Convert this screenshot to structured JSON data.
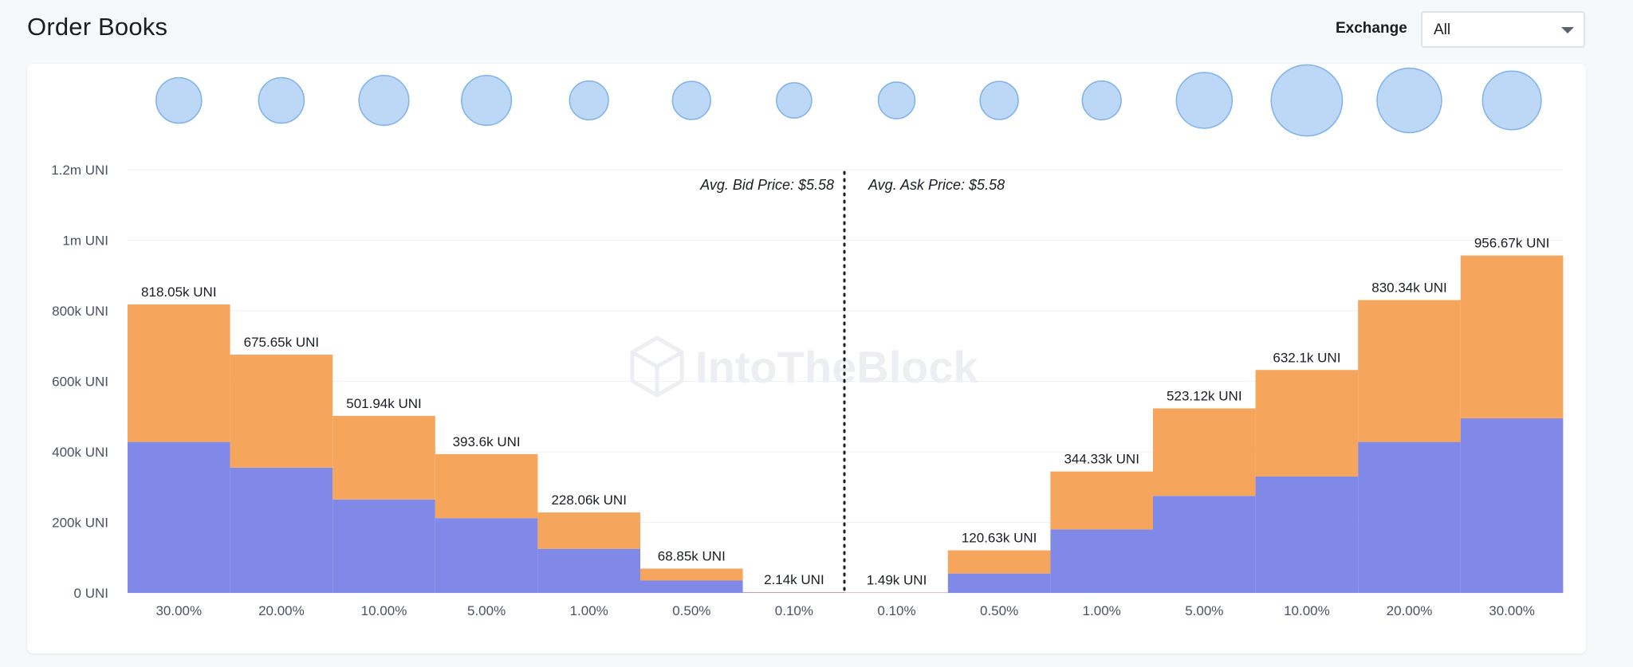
{
  "header": {
    "title": "Order Books",
    "exchange_label": "Exchange",
    "exchange_value": "All"
  },
  "watermark": "IntoTheBlock",
  "colors": {
    "upper": "#f5a55c",
    "lower": "#8088e8",
    "bubble_fill": "#bcd8f6",
    "bubble_stroke": "#7eb2ea"
  },
  "chart_data": {
    "type": "bar",
    "y_ticks": [
      "0 UNI",
      "200k UNI",
      "400k UNI",
      "600k UNI",
      "800k UNI",
      "1m UNI",
      "1.2m UNI"
    ],
    "ylim": [
      0,
      1200000
    ],
    "avg_bid_label": "Avg. Bid Price: $5.58",
    "avg_ask_label": "Avg. Ask Price: $5.58",
    "categories": [
      "30.00%",
      "20.00%",
      "10.00%",
      "5.00%",
      "1.00%",
      "0.50%",
      "0.10%",
      "0.10%",
      "0.50%",
      "1.00%",
      "5.00%",
      "10.00%",
      "20.00%",
      "30.00%"
    ],
    "sides": [
      "bid",
      "bid",
      "bid",
      "bid",
      "bid",
      "bid",
      "bid",
      "ask",
      "ask",
      "ask",
      "ask",
      "ask",
      "ask",
      "ask"
    ],
    "total_labels": [
      "818.05k UNI",
      "675.65k UNI",
      "501.94k UNI",
      "393.6k UNI",
      "228.06k UNI",
      "68.85k UNI",
      "2.14k UNI",
      "1.49k UNI",
      "120.63k UNI",
      "344.33k UNI",
      "523.12k UNI",
      "632.1k UNI",
      "830.34k UNI",
      "956.67k UNI"
    ],
    "series": [
      {
        "values": [
          428000,
          355000,
          265000,
          212000,
          125000,
          35000,
          1100,
          800,
          55000,
          180000,
          275000,
          330000,
          428000,
          495000
        ]
      },
      {
        "values": [
          390050,
          320650,
          236940,
          181600,
          103060,
          33850,
          1040,
          690,
          65630,
          164330,
          248120,
          302100,
          402340,
          461670
        ]
      }
    ],
    "bubble_relative_size": [
      0.62,
      0.62,
      0.68,
      0.68,
      0.53,
      0.52,
      0.48,
      0.5,
      0.52,
      0.53,
      0.76,
      0.97,
      0.88,
      0.8
    ]
  }
}
